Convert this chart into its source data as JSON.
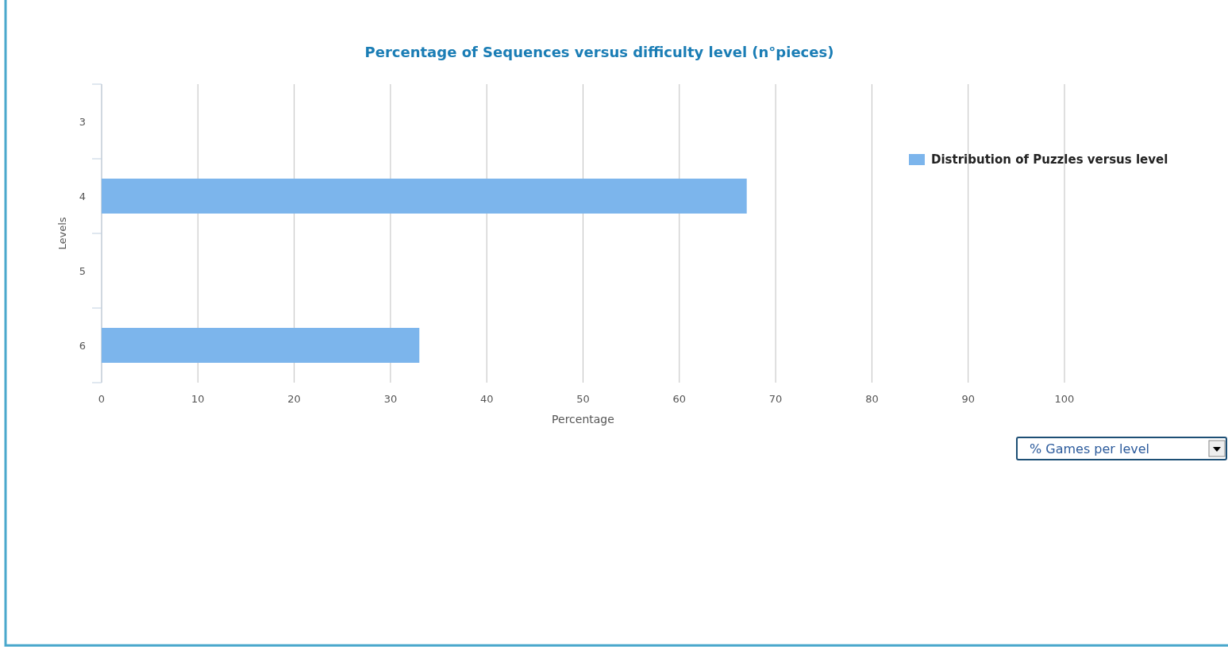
{
  "chart_data": {
    "type": "bar",
    "orientation": "horizontal",
    "title": "Percentage of Sequences versus difficulty level (n°pieces)",
    "xlabel": "Percentage",
    "ylabel": "Levels",
    "categories": [
      "3",
      "4",
      "5",
      "6"
    ],
    "series": [
      {
        "name": "Distribution of Puzzles versus level",
        "color": "#7cb5ec",
        "values": [
          null,
          67,
          null,
          33
        ]
      }
    ],
    "xlim": [
      0,
      100
    ],
    "xticks": [
      0,
      10,
      20,
      30,
      40,
      50,
      60,
      70,
      80,
      90,
      100
    ],
    "grid": "x",
    "legend": "right",
    "annotations": [
      "% Games per level"
    ]
  }
}
